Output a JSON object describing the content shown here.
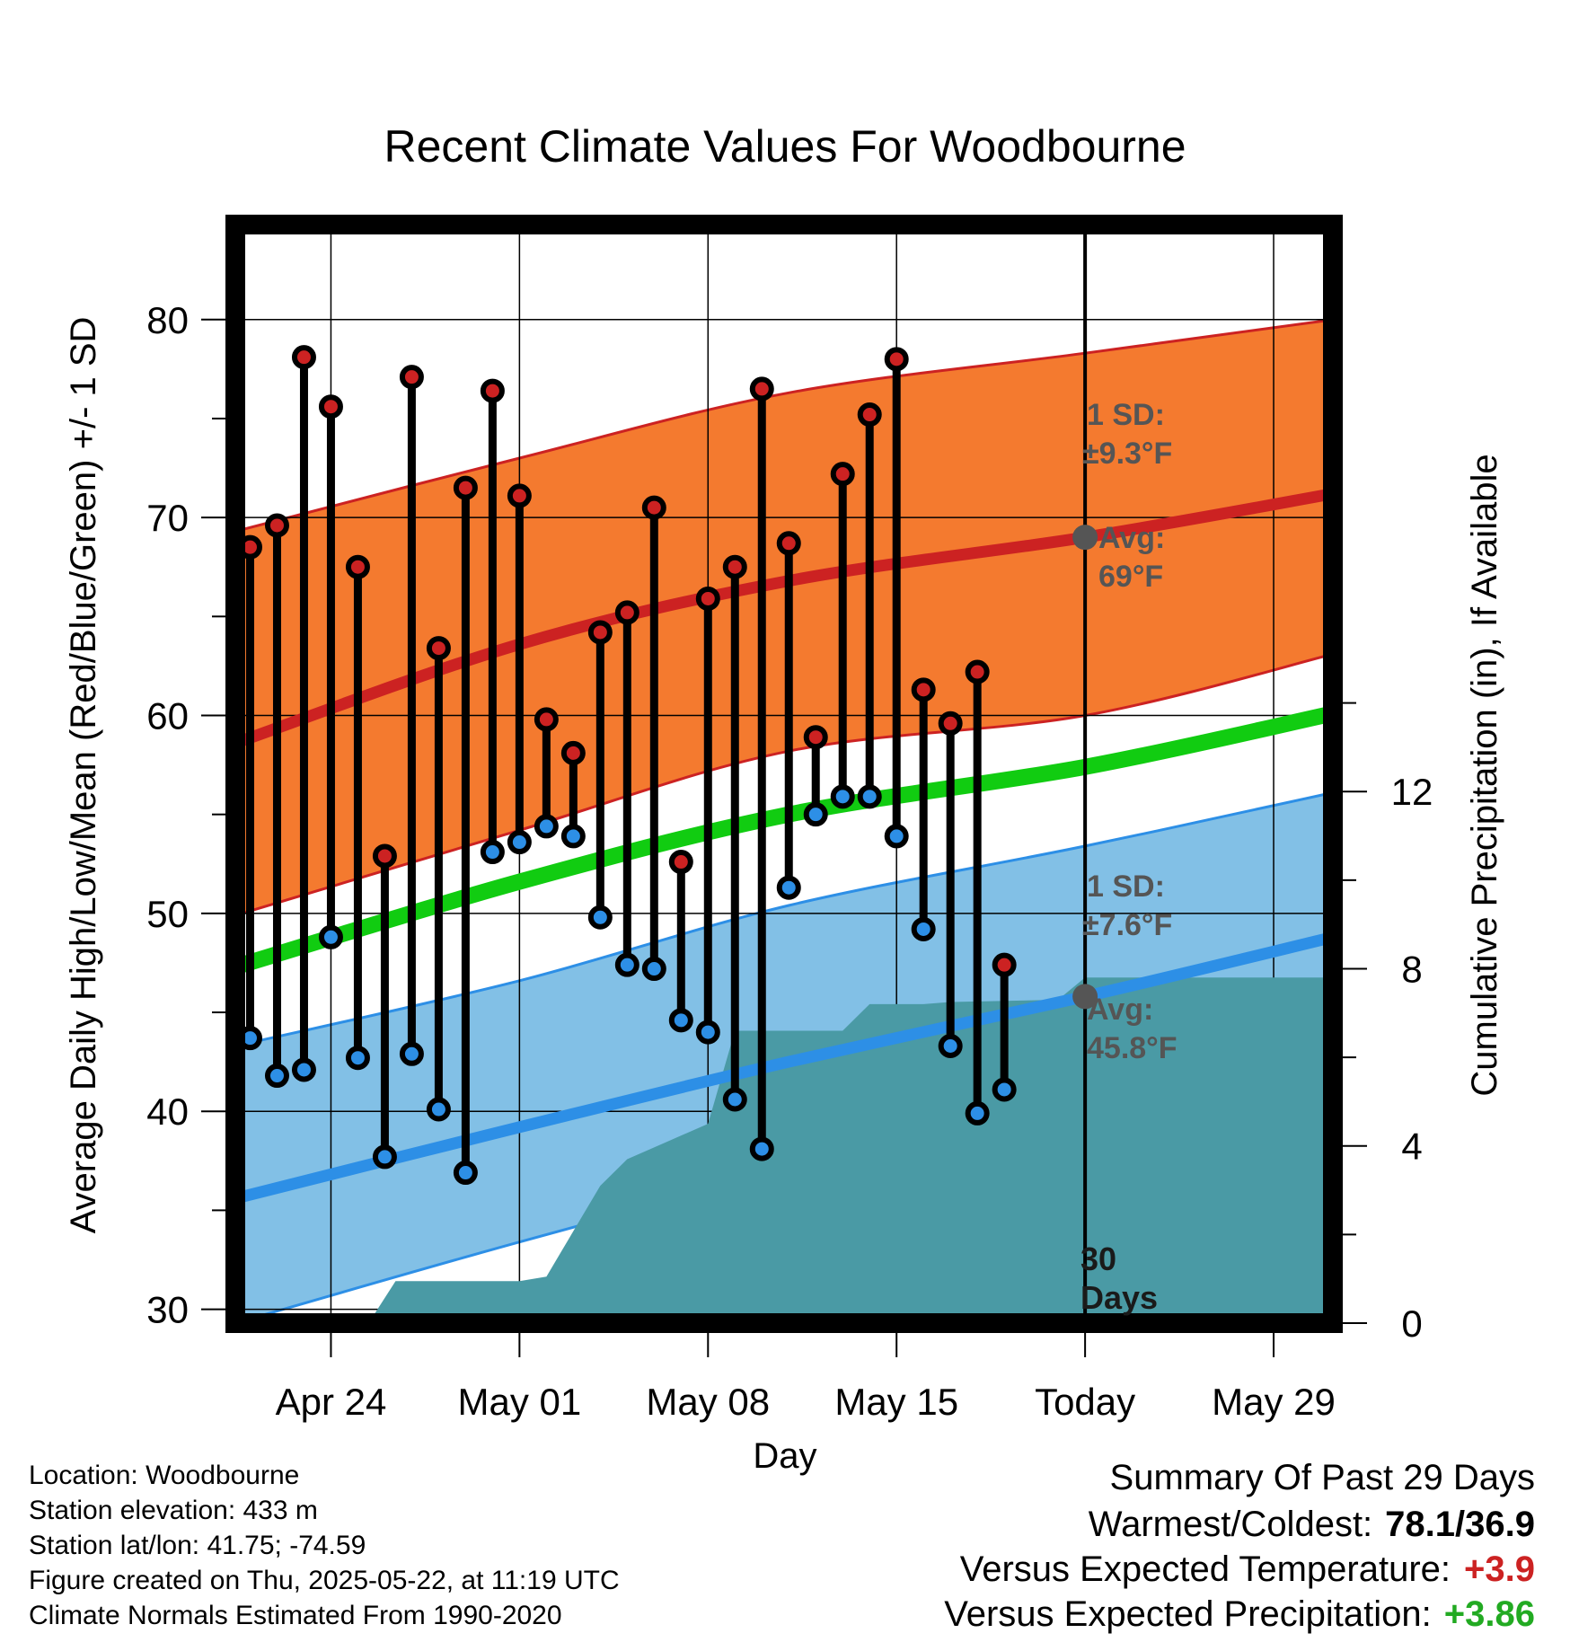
{
  "chart_data": {
    "type": "line",
    "title": "Recent Climate Values For Woodbourne",
    "xlabel": "Day",
    "ylabel": "Average Daily High/Low/Mean (Red/Blue/Green) +/- 1 SD",
    "y2label": "Cumulative Precipitation (in), If Available",
    "ylim": [
      29.3,
      84.8
    ],
    "y2lim": [
      0,
      24.8
    ],
    "xlim": [
      -0.55,
      40.2
    ],
    "x_unit": "days since Apr 21",
    "y_ticks": [
      30,
      40,
      50,
      60,
      70,
      80
    ],
    "y2_ticks": [
      0,
      4,
      8,
      12
    ],
    "x_ticks": [
      {
        "x": 3,
        "label": "Apr 24"
      },
      {
        "x": 10,
        "label": "May 01"
      },
      {
        "x": 17,
        "label": "May 08"
      },
      {
        "x": 24,
        "label": "May 15"
      },
      {
        "x": 31,
        "label": "Today"
      },
      {
        "x": 38,
        "label": "May 29"
      }
    ],
    "today_x": 31,
    "normals": {
      "x": [
        -0.55,
        10,
        20,
        31,
        40.2
      ],
      "high_avg": [
        58.6,
        63.6,
        66.8,
        69.0,
        71.2
      ],
      "high_upper": [
        69.3,
        73.0,
        76.3,
        78.3,
        80.0
      ],
      "high_lower": [
        49.9,
        54.2,
        58.2,
        60.0,
        63.1
      ],
      "mean_avg": [
        47.3,
        51.6,
        55.0,
        57.4,
        60.1
      ],
      "low_avg": [
        35.6,
        39.2,
        42.5,
        45.8,
        48.8
      ],
      "low_upper": [
        43.3,
        46.6,
        50.4,
        53.4,
        56.1
      ],
      "low_lower": [
        29.3,
        33.4,
        37.0,
        40.5,
        42.5
      ]
    },
    "series": [
      {
        "name": "Daily High",
        "color": "#cc2222",
        "x": [
          0,
          1,
          2,
          3,
          4,
          5,
          6,
          7,
          8,
          9,
          10,
          11,
          12,
          13,
          14,
          15,
          16,
          17,
          18,
          19,
          20,
          21,
          22,
          23,
          24,
          25,
          26,
          27,
          28,
          29
        ],
        "values": [
          68.5,
          69.6,
          78.1,
          75.6,
          67.5,
          52.9,
          77.1,
          63.4,
          71.5,
          76.4,
          71.1,
          59.8,
          58.1,
          64.2,
          65.2,
          70.5,
          52.6,
          65.9,
          67.5,
          76.5,
          68.7,
          58.9,
          72.2,
          75.2,
          78.0,
          61.3,
          59.6,
          62.2,
          47.4,
          null
        ]
      },
      {
        "name": "Daily Low",
        "color": "#2d8fe6",
        "x": [
          0,
          1,
          2,
          3,
          4,
          5,
          6,
          7,
          8,
          9,
          10,
          11,
          12,
          13,
          14,
          15,
          16,
          17,
          18,
          19,
          20,
          21,
          22,
          23,
          24,
          25,
          26,
          27,
          28,
          29
        ],
        "values": [
          43.7,
          41.8,
          42.1,
          48.8,
          42.7,
          37.7,
          42.9,
          40.1,
          36.9,
          53.1,
          53.6,
          54.4,
          53.9,
          49.8,
          47.4,
          47.2,
          44.6,
          44.0,
          40.6,
          38.1,
          51.3,
          55.0,
          55.9,
          55.9,
          53.9,
          49.2,
          43.3,
          39.9,
          41.1,
          null
        ]
      }
    ],
    "precipitation": {
      "x": [
        4.4,
        5.4,
        10,
        11,
        13,
        14,
        17,
        18,
        19,
        21,
        22,
        23,
        25,
        26,
        30,
        31,
        40.2
      ],
      "values": [
        0,
        0.95,
        0.95,
        1.05,
        3.1,
        3.7,
        4.5,
        6.6,
        6.6,
        6.6,
        6.6,
        7.2,
        7.2,
        7.25,
        7.3,
        7.8,
        7.8
      ]
    },
    "annotations": {
      "high_sd_label": "1 SD:",
      "high_sd_value": "±9.3°F",
      "high_avg_label": "Avg:",
      "high_avg_value": "69°F",
      "high_avg_marker": 69.0,
      "low_sd_label": "1 SD:",
      "low_sd_value": "±7.6°F",
      "low_avg_label": "Avg:",
      "low_avg_value": "45.8°F",
      "low_avg_marker": 45.8,
      "days_num": "30",
      "days_word": "Days"
    }
  },
  "colors": {
    "high_band": "#f47a2f",
    "high_line": "#cc2222",
    "low_band": "#82c0e6",
    "low_line": "#2d8fe6",
    "mean_line": "#11cc11",
    "precip": "#4a9aa5",
    "marker_gray": "#555555"
  },
  "footer": {
    "location": "Location: Woodbourne",
    "elevation": "Station elevation: 433 m",
    "latlon": "Station lat/lon: 41.75; -74.59",
    "created": "Figure created on Thu, 2025-05-22, at 11:19 UTC",
    "normals": "Climate Normals Estimated From 1990-2020"
  },
  "summary": {
    "title": "Summary Of Past 29 Days",
    "warm_cold_label": "Warmest/Coldest:",
    "warm_cold_value": "78.1/36.9",
    "temp_label": "Versus Expected Temperature:",
    "temp_value": "+3.9",
    "temp_color": "#cc2222",
    "precip_label": "Versus Expected Precipitation:",
    "precip_value": "+3.86",
    "precip_color": "#22aa22"
  }
}
